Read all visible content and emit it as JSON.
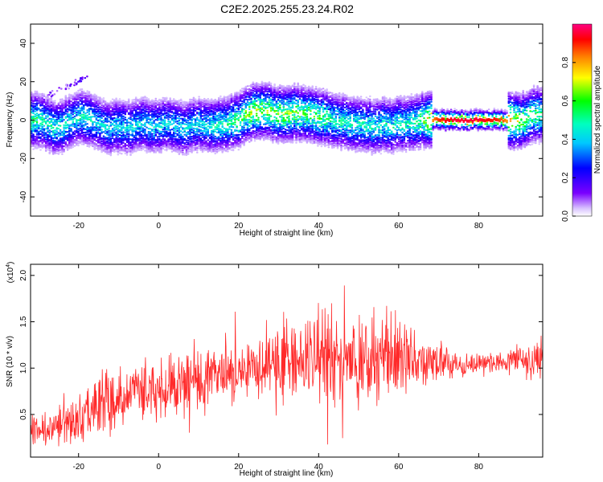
{
  "title": "C2E2.2025.255.23.24.R02",
  "chart_data": [
    {
      "type": "heatmap",
      "xlabel": "Height of straight line (km)",
      "ylabel": "Frequency (Hz)",
      "xlim": [
        -32,
        96
      ],
      "ylim": [
        -50,
        50
      ],
      "xticks": [
        -20,
        0,
        20,
        40,
        60,
        80
      ],
      "yticks": [
        -40,
        -20,
        0,
        20,
        40
      ],
      "grid": false,
      "colorbar": {
        "label": "Normalized spectral amplitude",
        "range": [
          0,
          1
        ],
        "ticks": [
          "0.0",
          "0.2",
          "0.4",
          "0.6",
          "0.8"
        ],
        "tick_values": [
          0,
          0.2,
          0.4,
          0.6,
          0.8
        ]
      },
      "ridge": {
        "x": [
          -32,
          -30,
          -28,
          -26,
          -24,
          -22,
          -20,
          -18,
          -16,
          -14,
          -12,
          -10,
          -8,
          -6,
          -4,
          -2,
          0,
          2,
          4,
          6,
          8,
          10,
          12,
          14,
          16,
          18,
          20,
          22,
          24,
          26,
          28,
          30,
          32,
          34,
          36,
          38,
          40,
          42,
          44,
          46,
          48,
          50,
          52,
          54,
          56,
          58,
          60,
          62,
          64,
          66,
          68,
          70,
          72,
          74,
          76,
          78,
          80,
          82,
          84,
          86,
          88,
          90,
          92,
          94,
          96
        ],
        "y": [
          0,
          0,
          -2,
          -4,
          -3,
          0,
          2,
          1,
          -1,
          -3,
          -4,
          -3,
          -4,
          -3,
          -2,
          -3,
          -3,
          -2,
          -3,
          -4,
          -3,
          -2,
          -3,
          -3,
          -2,
          -1,
          0,
          3,
          5,
          5,
          4,
          3,
          3,
          4,
          3,
          3,
          2,
          1,
          0,
          -1,
          -2,
          -2,
          -3,
          -3,
          -2,
          -3,
          -2,
          -2,
          -1,
          0,
          0,
          0,
          0,
          0,
          0,
          0,
          0,
          0,
          0,
          0,
          0,
          -1,
          1,
          3,
          3
        ],
        "peak": [
          0.5,
          0.5,
          0.45,
          0.45,
          0.45,
          0.4,
          0.45,
          0.45,
          0.4,
          0.4,
          0.4,
          0.4,
          0.4,
          0.4,
          0.4,
          0.4,
          0.4,
          0.4,
          0.4,
          0.4,
          0.4,
          0.4,
          0.4,
          0.45,
          0.45,
          0.5,
          0.55,
          0.6,
          0.65,
          0.6,
          0.6,
          0.6,
          0.6,
          0.6,
          0.55,
          0.55,
          0.55,
          0.5,
          0.45,
          0.45,
          0.45,
          0.45,
          0.45,
          0.45,
          0.45,
          0.45,
          0.45,
          0.45,
          0.5,
          0.55,
          0.8,
          0.9,
          0.92,
          0.95,
          0.95,
          0.95,
          0.95,
          0.92,
          0.9,
          0.85,
          0.75,
          0.6,
          0.55,
          0.55,
          0.5
        ]
      },
      "secondary_feature": {
        "x": [
          -28,
          -26,
          -24,
          -22,
          -20,
          -19,
          -18
        ],
        "y": [
          13,
          15,
          17,
          19,
          21,
          23,
          22
        ]
      }
    },
    {
      "type": "line",
      "xlabel": "Height of straight line (km)",
      "ylabel": "SNR (10 * v/v)",
      "y_multiplier": "(x10",
      "y_multiplier_exp": "4",
      "y_multiplier_close": ")",
      "xlim": [
        -32,
        96
      ],
      "ylim": [
        0.04,
        2.12
      ],
      "xticks": [
        -20,
        0,
        20,
        40,
        60,
        80
      ],
      "yticks": [
        0.5,
        1.0,
        1.5,
        2.0
      ],
      "ytick_labels": [
        "0.5",
        "1.0",
        "1.5",
        "2.0"
      ],
      "grid": false,
      "series": [
        {
          "color": "#ff2a2a",
          "x": [
            -32,
            -28,
            -24,
            -20,
            -16,
            -12,
            -8,
            -4,
            0,
            4,
            8,
            12,
            16,
            20,
            24,
            28,
            32,
            36,
            40,
            44,
            48,
            52,
            56,
            60,
            64,
            68,
            72,
            76,
            80,
            84,
            88,
            92,
            96
          ],
          "values": [
            0.35,
            0.35,
            0.38,
            0.45,
            0.55,
            0.65,
            0.72,
            0.75,
            0.78,
            0.8,
            0.85,
            0.88,
            0.9,
            0.95,
            1.0,
            1.05,
            1.1,
            1.1,
            1.12,
            1.12,
            1.08,
            1.08,
            1.12,
            1.1,
            1.08,
            1.05,
            1.05,
            1.02,
            1.05,
            1.05,
            1.1,
            1.08,
            1.15
          ],
          "spread": [
            0.2,
            0.25,
            0.25,
            0.3,
            0.4,
            0.45,
            0.45,
            0.4,
            0.4,
            0.45,
            0.55,
            0.4,
            0.35,
            0.4,
            0.4,
            0.45,
            0.55,
            0.6,
            0.65,
            0.6,
            0.55,
            0.6,
            0.65,
            0.55,
            0.45,
            0.3,
            0.25,
            0.15,
            0.12,
            0.12,
            0.15,
            0.25,
            0.3
          ]
        }
      ]
    }
  ]
}
